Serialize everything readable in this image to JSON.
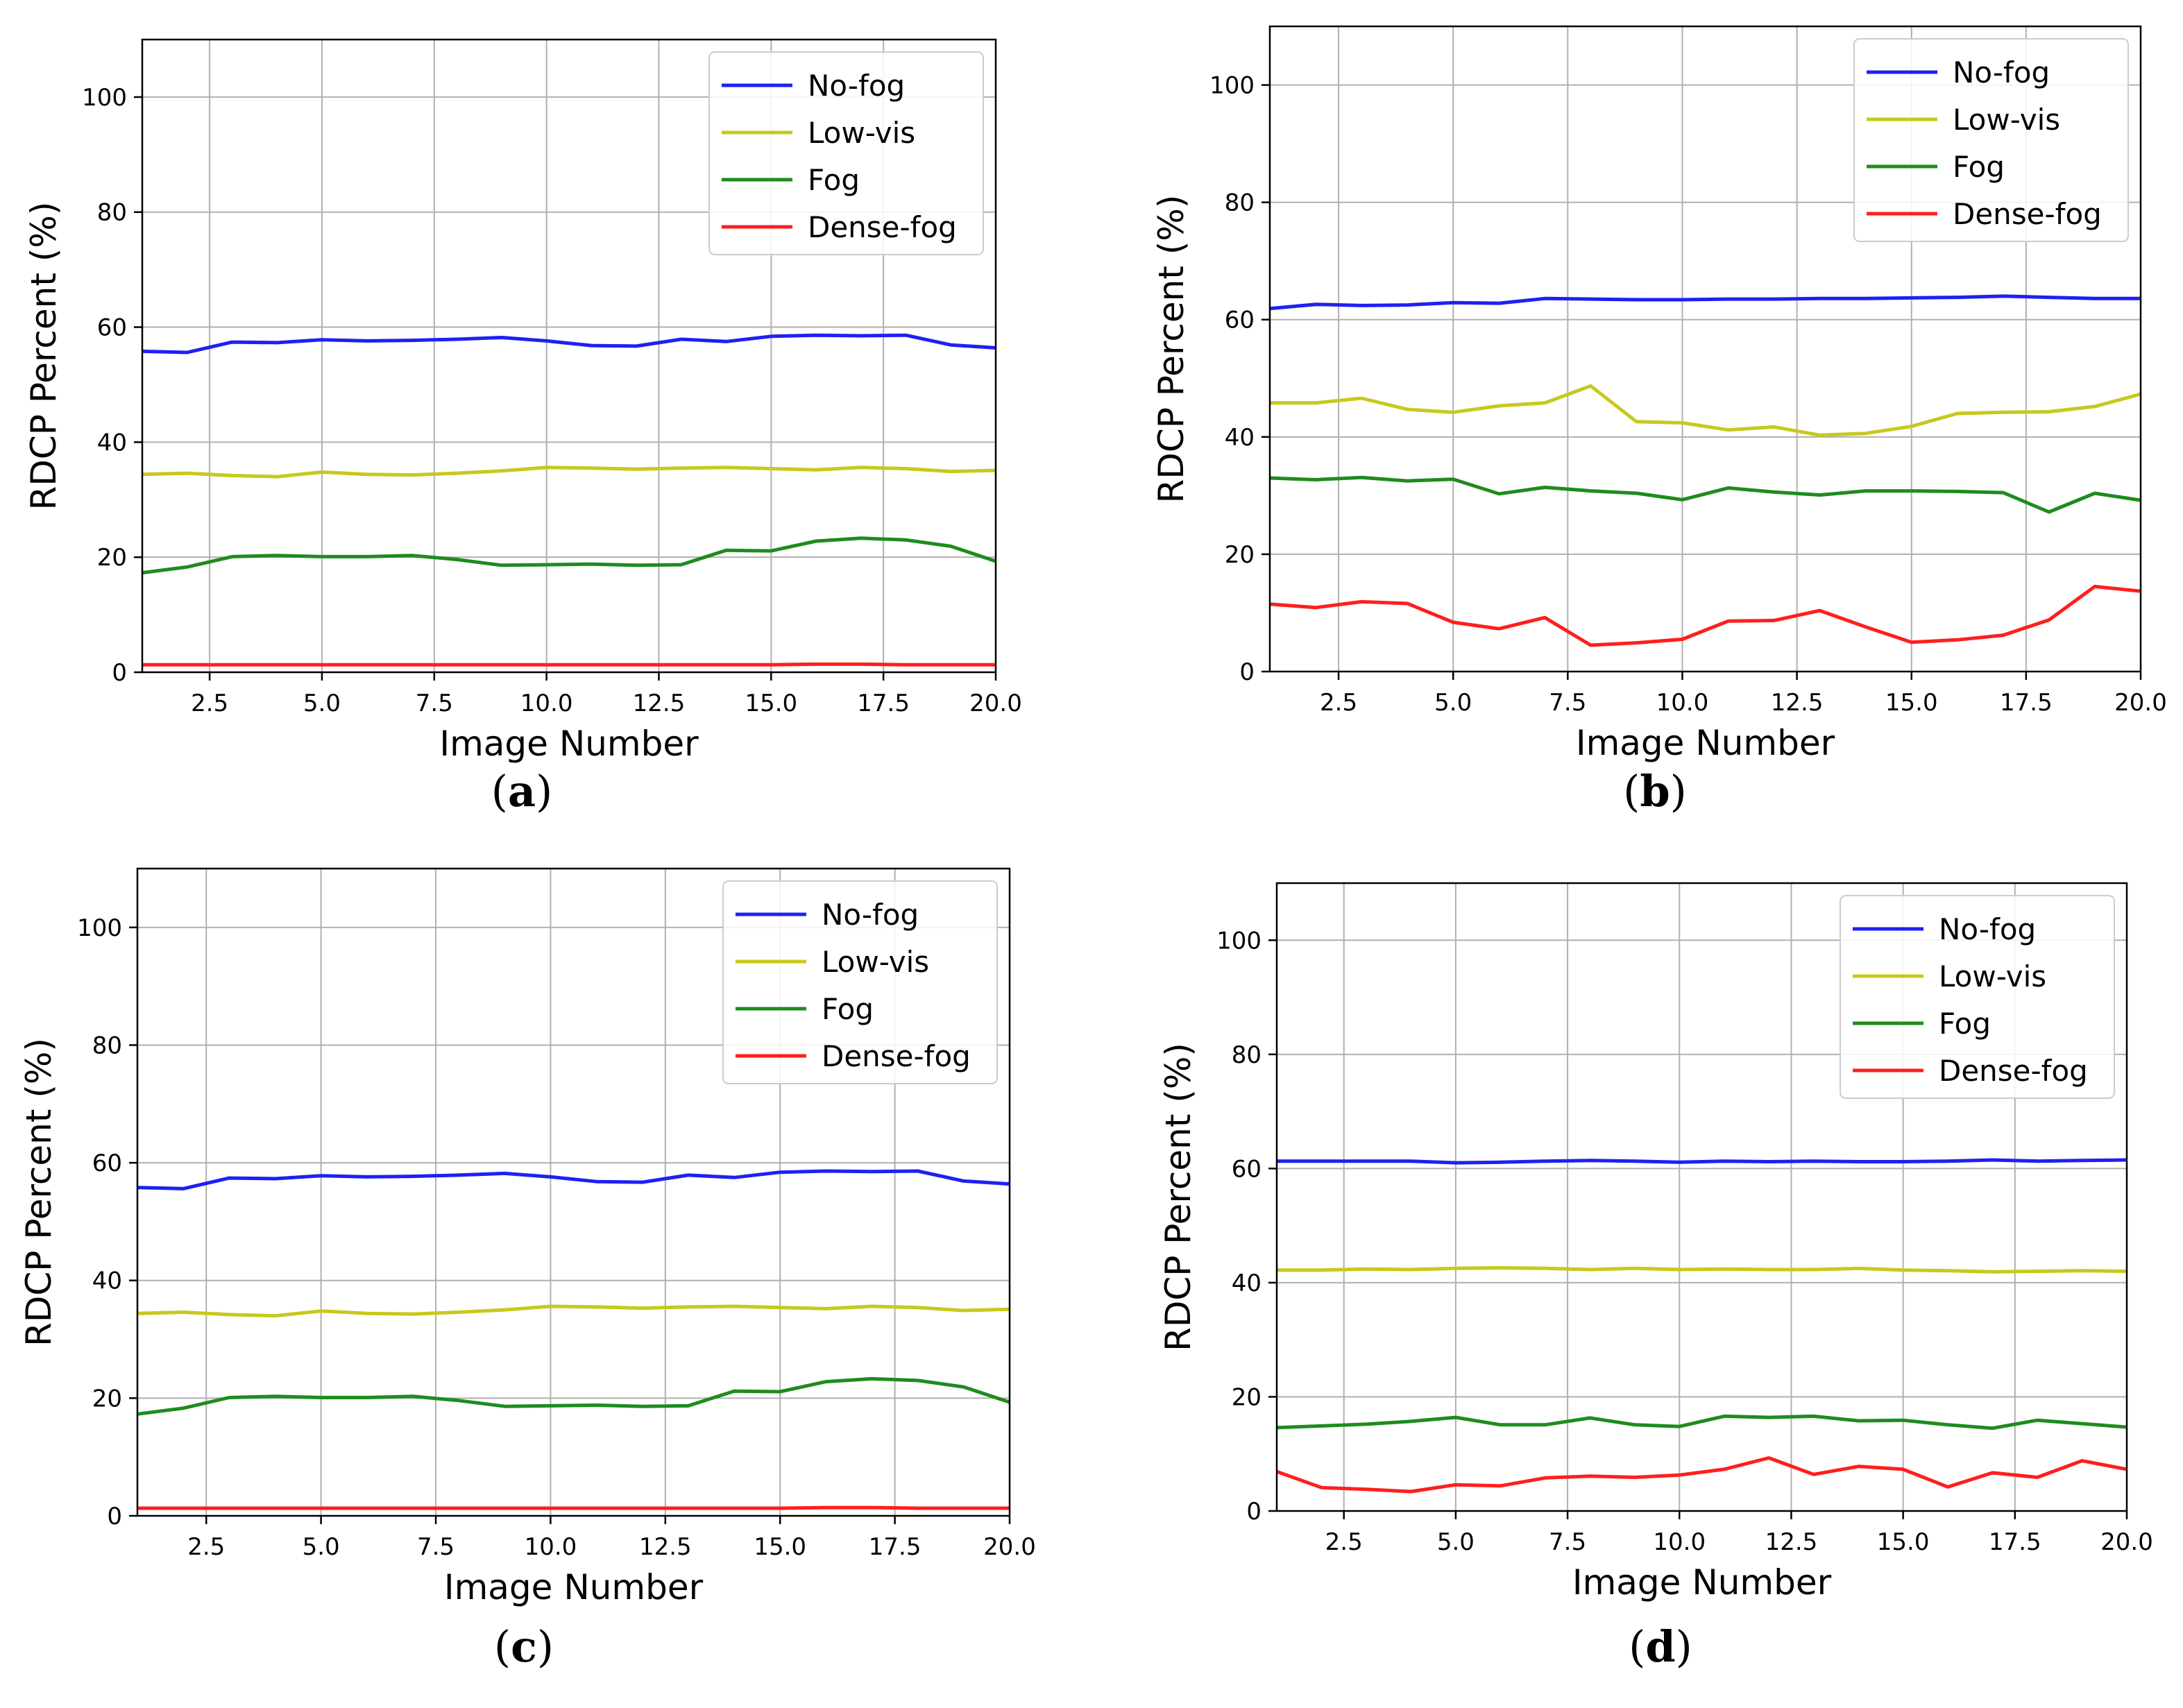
{
  "chart_data": [
    {
      "type": "line",
      "panel_label": "a",
      "xlabel": "Image Number",
      "ylabel": "RDCP Percent (%)",
      "xlim": [
        1,
        20
      ],
      "ylim": [
        0,
        110
      ],
      "xticks": [
        "2.5",
        "5.0",
        "7.5",
        "10.0",
        "12.5",
        "15.0",
        "17.5",
        "20.0"
      ],
      "yticks": [
        "0",
        "20",
        "40",
        "60",
        "80",
        "100"
      ],
      "grid": true,
      "legend_position": "top-right",
      "x": [
        1,
        2,
        3,
        4,
        5,
        6,
        7,
        8,
        9,
        10,
        11,
        12,
        13,
        14,
        15,
        16,
        17,
        18,
        19,
        20
      ],
      "series": [
        {
          "name": "No-fog",
          "color": "#1f1ff5",
          "values": [
            55.8,
            55.6,
            57.4,
            57.3,
            57.8,
            57.6,
            57.7,
            57.9,
            58.2,
            57.6,
            56.8,
            56.7,
            57.9,
            57.5,
            58.4,
            58.6,
            58.5,
            58.6,
            56.9,
            56.4
          ]
        },
        {
          "name": "Low-vis",
          "color": "#c8c81e",
          "values": [
            34.4,
            34.6,
            34.2,
            34.0,
            34.8,
            34.4,
            34.3,
            34.6,
            35.0,
            35.6,
            35.5,
            35.3,
            35.5,
            35.6,
            35.4,
            35.2,
            35.6,
            35.4,
            34.9,
            35.1
          ]
        },
        {
          "name": "Fog",
          "color": "#1e8c1e",
          "values": [
            17.3,
            18.3,
            20.1,
            20.3,
            20.1,
            20.1,
            20.3,
            19.6,
            18.6,
            18.7,
            18.8,
            18.6,
            18.7,
            21.2,
            21.1,
            22.8,
            23.3,
            23.0,
            21.9,
            19.3
          ]
        },
        {
          "name": "Dense-fog",
          "color": "#ff1e1e",
          "values": [
            1.3,
            1.3,
            1.3,
            1.3,
            1.3,
            1.3,
            1.3,
            1.3,
            1.3,
            1.3,
            1.3,
            1.3,
            1.3,
            1.3,
            1.3,
            1.4,
            1.4,
            1.3,
            1.3,
            1.3
          ]
        }
      ]
    },
    {
      "type": "line",
      "panel_label": "b",
      "xlabel": "Image Number",
      "ylabel": "RDCP Percent (%)",
      "xlim": [
        1,
        20
      ],
      "ylim": [
        0,
        110
      ],
      "xticks": [
        "2.5",
        "5.0",
        "7.5",
        "10.0",
        "12.5",
        "15.0",
        "17.5",
        "20.0"
      ],
      "yticks": [
        "0",
        "20",
        "40",
        "60",
        "80",
        "100"
      ],
      "grid": true,
      "legend_position": "top-right",
      "x": [
        1,
        2,
        3,
        4,
        5,
        6,
        7,
        8,
        9,
        10,
        11,
        12,
        13,
        14,
        15,
        16,
        17,
        18,
        19,
        20
      ],
      "series": [
        {
          "name": "No-fog",
          "color": "#1f1ff5",
          "values": [
            61.9,
            62.6,
            62.4,
            62.5,
            62.9,
            62.8,
            63.6,
            63.5,
            63.4,
            63.4,
            63.5,
            63.5,
            63.6,
            63.6,
            63.7,
            63.8,
            64.0,
            63.8,
            63.6,
            63.6
          ]
        },
        {
          "name": "Low-vis",
          "color": "#c8c81e",
          "values": [
            45.8,
            45.8,
            46.6,
            44.7,
            44.2,
            45.3,
            45.8,
            48.7,
            42.6,
            42.4,
            41.2,
            41.7,
            40.3,
            40.6,
            41.8,
            44.0,
            44.2,
            44.3,
            45.2,
            47.3
          ]
        },
        {
          "name": "Fog",
          "color": "#1e8c1e",
          "values": [
            33.0,
            32.7,
            33.1,
            32.5,
            32.8,
            30.3,
            31.4,
            30.8,
            30.4,
            29.3,
            31.3,
            30.6,
            30.1,
            30.8,
            30.8,
            30.7,
            30.5,
            27.2,
            30.4,
            29.2
          ]
        },
        {
          "name": "Dense-fog",
          "color": "#ff1e1e",
          "values": [
            11.5,
            10.9,
            11.9,
            11.6,
            8.4,
            7.3,
            9.2,
            4.5,
            4.9,
            5.5,
            8.6,
            8.7,
            10.4,
            7.6,
            5.0,
            5.4,
            6.2,
            8.8,
            14.5,
            13.7
          ]
        }
      ]
    },
    {
      "type": "line",
      "panel_label": "c",
      "xlabel": "Image Number",
      "ylabel": "RDCP Percent (%)",
      "xlim": [
        1,
        20
      ],
      "ylim": [
        0,
        110
      ],
      "xticks": [
        "2.5",
        "5.0",
        "7.5",
        "10.0",
        "12.5",
        "15.0",
        "17.5",
        "20.0"
      ],
      "yticks": [
        "0",
        "20",
        "40",
        "60",
        "80",
        "100"
      ],
      "grid": true,
      "legend_position": "top-right",
      "x": [
        1,
        2,
        3,
        4,
        5,
        6,
        7,
        8,
        9,
        10,
        11,
        12,
        13,
        14,
        15,
        16,
        17,
        18,
        19,
        20
      ],
      "series": [
        {
          "name": "No-fog",
          "color": "#1f1ff5",
          "values": [
            55.8,
            55.6,
            57.4,
            57.3,
            57.8,
            57.6,
            57.7,
            57.9,
            58.2,
            57.6,
            56.8,
            56.7,
            57.9,
            57.5,
            58.4,
            58.6,
            58.5,
            58.6,
            56.9,
            56.4
          ]
        },
        {
          "name": "Low-vis",
          "color": "#c8c81e",
          "values": [
            34.4,
            34.6,
            34.2,
            34.0,
            34.8,
            34.4,
            34.3,
            34.6,
            35.0,
            35.6,
            35.5,
            35.3,
            35.5,
            35.6,
            35.4,
            35.2,
            35.6,
            35.4,
            34.9,
            35.1
          ]
        },
        {
          "name": "Fog",
          "color": "#1e8c1e",
          "values": [
            17.3,
            18.3,
            20.1,
            20.3,
            20.1,
            20.1,
            20.3,
            19.6,
            18.6,
            18.7,
            18.8,
            18.6,
            18.7,
            21.2,
            21.1,
            22.8,
            23.3,
            23.0,
            21.9,
            19.3
          ]
        },
        {
          "name": "Dense-fog",
          "color": "#ff1e1e",
          "values": [
            1.3,
            1.3,
            1.3,
            1.3,
            1.3,
            1.3,
            1.3,
            1.3,
            1.3,
            1.3,
            1.3,
            1.3,
            1.3,
            1.3,
            1.3,
            1.4,
            1.4,
            1.3,
            1.3,
            1.3
          ]
        }
      ]
    },
    {
      "type": "line",
      "panel_label": "d",
      "xlabel": "Image Number",
      "ylabel": "RDCP Percent (%)",
      "xlim": [
        1,
        20
      ],
      "ylim": [
        0,
        110
      ],
      "xticks": [
        "2.5",
        "5.0",
        "7.5",
        "10.0",
        "12.5",
        "15.0",
        "17.5",
        "20.0"
      ],
      "yticks": [
        "0",
        "20",
        "40",
        "60",
        "80",
        "100"
      ],
      "grid": true,
      "legend_position": "top-right",
      "x": [
        1,
        2,
        3,
        4,
        5,
        6,
        7,
        8,
        9,
        10,
        11,
        12,
        13,
        14,
        15,
        16,
        17,
        18,
        19,
        20
      ],
      "series": [
        {
          "name": "No-fog",
          "color": "#1f1ff5",
          "values": [
            61.3,
            61.3,
            61.3,
            61.3,
            61.0,
            61.1,
            61.3,
            61.4,
            61.3,
            61.1,
            61.3,
            61.2,
            61.3,
            61.2,
            61.2,
            61.3,
            61.5,
            61.3,
            61.4,
            61.5
          ]
        },
        {
          "name": "Low-vis",
          "color": "#c8c81e",
          "values": [
            42.2,
            42.2,
            42.4,
            42.3,
            42.5,
            42.6,
            42.5,
            42.3,
            42.5,
            42.3,
            42.4,
            42.3,
            42.3,
            42.5,
            42.2,
            42.1,
            41.9,
            42.0,
            42.1,
            42.0
          ]
        },
        {
          "name": "Fog",
          "color": "#1e8c1e",
          "values": [
            14.6,
            14.9,
            15.2,
            15.7,
            16.4,
            15.1,
            15.1,
            16.3,
            15.1,
            14.8,
            16.6,
            16.4,
            16.6,
            15.8,
            15.9,
            15.1,
            14.5,
            15.9,
            15.3,
            14.7
          ]
        },
        {
          "name": "Dense-fog",
          "color": "#ff1e1e",
          "values": [
            6.9,
            4.1,
            3.8,
            3.4,
            4.6,
            4.4,
            5.8,
            6.1,
            5.9,
            6.3,
            7.3,
            9.3,
            6.4,
            7.8,
            7.3,
            4.2,
            6.7,
            5.9,
            8.8,
            7.3
          ]
        }
      ]
    }
  ]
}
